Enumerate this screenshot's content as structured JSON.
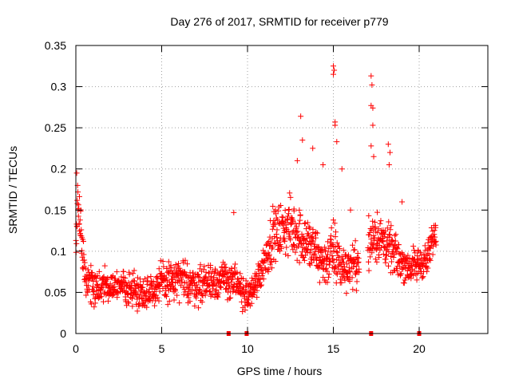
{
  "chart_data": {
    "type": "scatter",
    "title": "Day 276 of 2017, SRMTID for receiver p779",
    "xlabel": "GPS time / hours",
    "ylabel": "SRMTID / TECUs",
    "xlim": [
      0,
      24
    ],
    "ylim": [
      0,
      0.35
    ],
    "xticks": [
      0,
      5,
      10,
      15,
      20
    ],
    "xtick_labels": [
      "0",
      "5",
      "10",
      "15",
      "20"
    ],
    "yticks": [
      0,
      0.05,
      0.1,
      0.15,
      0.2,
      0.25,
      0.3,
      0.35
    ],
    "ytick_labels": [
      "0",
      "0.05",
      "0.1",
      "0.15",
      "0.2",
      "0.25",
      "0.3",
      "0.35"
    ],
    "grid": true,
    "marker": "+",
    "color": "#ff0000",
    "gap_markers_x": [
      8.9,
      9.95,
      17.2,
      20.0
    ],
    "series": [
      {
        "name": "SRMTID",
        "envelope": [
          {
            "x": 0.0,
            "y": 0.09,
            "spread": 0.04
          },
          {
            "x": 0.1,
            "y": 0.16,
            "spread": 0.04
          },
          {
            "x": 0.3,
            "y": 0.12,
            "spread": 0.04
          },
          {
            "x": 0.6,
            "y": 0.065,
            "spread": 0.03
          },
          {
            "x": 1.0,
            "y": 0.055,
            "spread": 0.03
          },
          {
            "x": 2.0,
            "y": 0.06,
            "spread": 0.03
          },
          {
            "x": 3.0,
            "y": 0.055,
            "spread": 0.03
          },
          {
            "x": 4.0,
            "y": 0.05,
            "spread": 0.03
          },
          {
            "x": 5.0,
            "y": 0.06,
            "spread": 0.035
          },
          {
            "x": 6.0,
            "y": 0.065,
            "spread": 0.035
          },
          {
            "x": 7.0,
            "y": 0.06,
            "spread": 0.035
          },
          {
            "x": 8.0,
            "y": 0.065,
            "spread": 0.035
          },
          {
            "x": 9.0,
            "y": 0.065,
            "spread": 0.035
          },
          {
            "x": 10.0,
            "y": 0.045,
            "spread": 0.025
          },
          {
            "x": 10.5,
            "y": 0.06,
            "spread": 0.03
          },
          {
            "x": 11.0,
            "y": 0.09,
            "spread": 0.035
          },
          {
            "x": 11.5,
            "y": 0.12,
            "spread": 0.045
          },
          {
            "x": 12.5,
            "y": 0.13,
            "spread": 0.05
          },
          {
            "x": 13.5,
            "y": 0.11,
            "spread": 0.05
          },
          {
            "x": 14.5,
            "y": 0.085,
            "spread": 0.04
          },
          {
            "x": 15.0,
            "y": 0.1,
            "spread": 0.06
          },
          {
            "x": 15.5,
            "y": 0.08,
            "spread": 0.04
          },
          {
            "x": 16.5,
            "y": 0.085,
            "spread": 0.035
          },
          {
            "x": 17.3,
            "y": 0.12,
            "spread": 0.05
          },
          {
            "x": 18.0,
            "y": 0.11,
            "spread": 0.04
          },
          {
            "x": 18.8,
            "y": 0.09,
            "spread": 0.035
          },
          {
            "x": 19.5,
            "y": 0.08,
            "spread": 0.03
          },
          {
            "x": 20.5,
            "y": 0.09,
            "spread": 0.03
          },
          {
            "x": 21.0,
            "y": 0.13,
            "spread": 0.03
          }
        ],
        "highlights": [
          {
            "x": 0.05,
            "y": 0.195
          },
          {
            "x": 0.1,
            "y": 0.18
          },
          {
            "x": 9.2,
            "y": 0.147
          },
          {
            "x": 13.1,
            "y": 0.264
          },
          {
            "x": 13.2,
            "y": 0.235
          },
          {
            "x": 12.9,
            "y": 0.21
          },
          {
            "x": 13.8,
            "y": 0.225
          },
          {
            "x": 14.4,
            "y": 0.205
          },
          {
            "x": 15.0,
            "y": 0.325
          },
          {
            "x": 15.05,
            "y": 0.32
          },
          {
            "x": 15.0,
            "y": 0.315
          },
          {
            "x": 15.1,
            "y": 0.257
          },
          {
            "x": 15.1,
            "y": 0.253
          },
          {
            "x": 15.2,
            "y": 0.233
          },
          {
            "x": 15.5,
            "y": 0.2
          },
          {
            "x": 17.2,
            "y": 0.313
          },
          {
            "x": 17.25,
            "y": 0.302
          },
          {
            "x": 17.2,
            "y": 0.277
          },
          {
            "x": 17.3,
            "y": 0.274
          },
          {
            "x": 17.3,
            "y": 0.253
          },
          {
            "x": 17.2,
            "y": 0.228
          },
          {
            "x": 17.35,
            "y": 0.215
          },
          {
            "x": 18.2,
            "y": 0.23
          },
          {
            "x": 18.3,
            "y": 0.22
          },
          {
            "x": 18.25,
            "y": 0.205
          },
          {
            "x": 16.0,
            "y": 0.15
          },
          {
            "x": 19.0,
            "y": 0.16
          }
        ]
      }
    ]
  }
}
